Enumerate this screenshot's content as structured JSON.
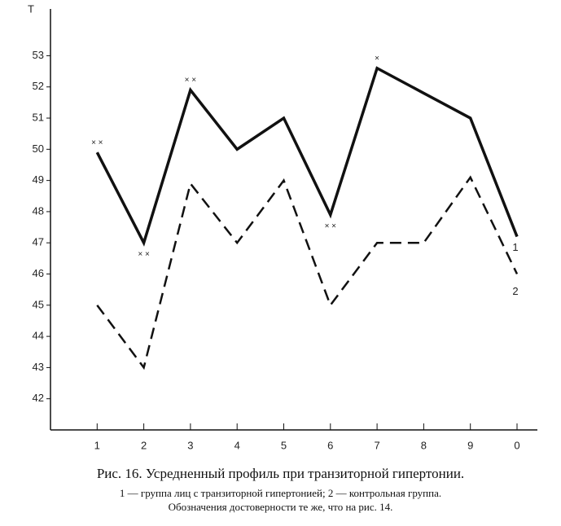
{
  "chart_data": {
    "type": "line",
    "ylabel": "T",
    "categories": [
      "1",
      "2",
      "3",
      "4",
      "5",
      "6",
      "7",
      "8",
      "9",
      "0"
    ],
    "ylim": [
      41,
      54.5
    ],
    "yticks": [
      42,
      43,
      44,
      45,
      46,
      47,
      48,
      49,
      50,
      51,
      52,
      53
    ],
    "grid": false,
    "series": [
      {
        "name": "1",
        "color": "#111111",
        "dash": false,
        "values": [
          49.9,
          47,
          51.9,
          50,
          51,
          47.9,
          52.6,
          51.8,
          51,
          47.2
        ],
        "marks": [
          "× ×",
          "× ×",
          "× ×",
          null,
          null,
          "× ×",
          "×",
          null,
          null,
          null
        ]
      },
      {
        "name": "2",
        "color": "#111111",
        "dash": true,
        "values": [
          45,
          43,
          48.9,
          47,
          49,
          45,
          47,
          47,
          49.1,
          46
        ]
      }
    ]
  },
  "caption": [
    "Рис. 16. Усредненный профиль при транзиторной гипертонии.",
    "1 — группа лиц с транзиторной гипертонией; 2 — контрольная группа.",
    "Обозначения достоверности те же, что на рис. 14."
  ]
}
